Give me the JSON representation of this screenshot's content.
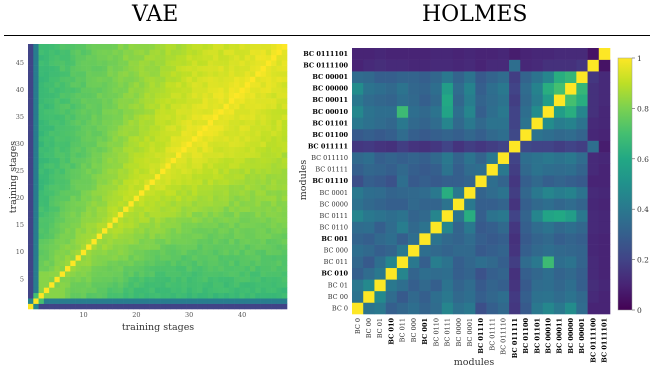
{
  "titles": {
    "left": "VAE",
    "right": "HOLMES"
  },
  "colors": {
    "viridis": [
      "#440154",
      "#482475",
      "#414487",
      "#355f8d",
      "#2a788e",
      "#21918c",
      "#22a884",
      "#44bf70",
      "#7ad151",
      "#bddf26",
      "#fde725"
    ]
  },
  "chart_data": [
    {
      "type": "heatmap",
      "title": "VAE",
      "xlabel": "training stages",
      "ylabel": "training stages",
      "n": 49,
      "xlim": [
        0,
        48
      ],
      "ylim": [
        0,
        48
      ],
      "x_ticks": [
        10,
        20,
        30,
        40
      ],
      "y_ticks": [
        5,
        10,
        15,
        20,
        25,
        30,
        35,
        40,
        45
      ],
      "zlim": [
        0,
        1
      ],
      "colormap": "viridis",
      "grid": false,
      "legend": "none"
    },
    {
      "type": "heatmap",
      "title": "HOLMES",
      "xlabel": "modules",
      "ylabel": "modules",
      "zlim": [
        0,
        1
      ],
      "colormap": "viridis",
      "grid": false,
      "colorbar": {
        "placement": "right",
        "ticks": [
          "0",
          "0.2",
          "0.4",
          "0.6",
          "0.8",
          "1"
        ]
      },
      "modules": [
        {
          "name": "BC 0",
          "bold": false
        },
        {
          "name": "BC 00",
          "bold": false
        },
        {
          "name": "BC 01",
          "bold": false
        },
        {
          "name": "BC 010",
          "bold": true
        },
        {
          "name": "BC 011",
          "bold": false
        },
        {
          "name": "BC 000",
          "bold": false
        },
        {
          "name": "BC 001",
          "bold": true
        },
        {
          "name": "BC 0110",
          "bold": false
        },
        {
          "name": "BC 0111",
          "bold": false
        },
        {
          "name": "BC 0000",
          "bold": false
        },
        {
          "name": "BC 0001",
          "bold": false
        },
        {
          "name": "BC 01110",
          "bold": true
        },
        {
          "name": "BC 01111",
          "bold": false
        },
        {
          "name": "BC 011110",
          "bold": false
        },
        {
          "name": "BC 011111",
          "bold": true
        },
        {
          "name": "BC 01100",
          "bold": true
        },
        {
          "name": "BC 01101",
          "bold": true
        },
        {
          "name": "BC 00010",
          "bold": true
        },
        {
          "name": "BC 00011",
          "bold": true
        },
        {
          "name": "BC 00000",
          "bold": true
        },
        {
          "name": "BC 00001",
          "bold": true
        },
        {
          "name": "BC 0111100",
          "bold": true
        },
        {
          "name": "BC 0111101",
          "bold": true
        }
      ],
      "values": [
        [
          1.0,
          0.38,
          0.4,
          0.3,
          0.33,
          0.36,
          0.32,
          0.35,
          0.45,
          0.37,
          0.4,
          0.24,
          0.3,
          0.34,
          0.16,
          0.28,
          0.4,
          0.46,
          0.4,
          0.48,
          0.35,
          0.1,
          0.1
        ],
        [
          0.38,
          1.0,
          0.47,
          0.35,
          0.28,
          0.34,
          0.3,
          0.36,
          0.4,
          0.34,
          0.36,
          0.3,
          0.33,
          0.36,
          0.17,
          0.3,
          0.37,
          0.38,
          0.35,
          0.38,
          0.34,
          0.12,
          0.1
        ],
        [
          0.4,
          0.47,
          1.0,
          0.4,
          0.36,
          0.3,
          0.34,
          0.3,
          0.38,
          0.32,
          0.35,
          0.28,
          0.32,
          0.3,
          0.15,
          0.28,
          0.35,
          0.36,
          0.33,
          0.36,
          0.3,
          0.13,
          0.11
        ],
        [
          0.3,
          0.35,
          0.4,
          1.0,
          0.45,
          0.32,
          0.36,
          0.35,
          0.36,
          0.3,
          0.32,
          0.25,
          0.3,
          0.32,
          0.14,
          0.3,
          0.33,
          0.36,
          0.32,
          0.34,
          0.3,
          0.12,
          0.1
        ],
        [
          0.33,
          0.28,
          0.36,
          0.45,
          1.0,
          0.4,
          0.3,
          0.42,
          0.38,
          0.3,
          0.33,
          0.36,
          0.34,
          0.3,
          0.18,
          0.35,
          0.4,
          0.68,
          0.36,
          0.38,
          0.32,
          0.12,
          0.1
        ],
        [
          0.36,
          0.34,
          0.3,
          0.32,
          0.4,
          1.0,
          0.36,
          0.34,
          0.32,
          0.34,
          0.34,
          0.28,
          0.3,
          0.32,
          0.15,
          0.3,
          0.34,
          0.36,
          0.34,
          0.33,
          0.32,
          0.11,
          0.1
        ],
        [
          0.32,
          0.3,
          0.34,
          0.36,
          0.3,
          0.36,
          1.0,
          0.38,
          0.34,
          0.32,
          0.35,
          0.3,
          0.28,
          0.3,
          0.14,
          0.28,
          0.32,
          0.34,
          0.3,
          0.32,
          0.3,
          0.11,
          0.1
        ],
        [
          0.35,
          0.36,
          0.3,
          0.35,
          0.42,
          0.34,
          0.38,
          1.0,
          0.45,
          0.32,
          0.4,
          0.28,
          0.3,
          0.34,
          0.16,
          0.3,
          0.35,
          0.38,
          0.34,
          0.36,
          0.33,
          0.12,
          0.11
        ],
        [
          0.45,
          0.4,
          0.38,
          0.36,
          0.38,
          0.32,
          0.34,
          0.45,
          1.0,
          0.38,
          0.62,
          0.3,
          0.38,
          0.4,
          0.2,
          0.32,
          0.45,
          0.58,
          0.6,
          0.55,
          0.4,
          0.12,
          0.11
        ],
        [
          0.37,
          0.34,
          0.32,
          0.3,
          0.3,
          0.34,
          0.32,
          0.32,
          0.38,
          1.0,
          0.4,
          0.3,
          0.3,
          0.32,
          0.15,
          0.3,
          0.34,
          0.36,
          0.33,
          0.35,
          0.32,
          0.11,
          0.1
        ],
        [
          0.4,
          0.36,
          0.35,
          0.32,
          0.33,
          0.34,
          0.35,
          0.4,
          0.62,
          0.4,
          1.0,
          0.32,
          0.35,
          0.38,
          0.18,
          0.33,
          0.4,
          0.45,
          0.42,
          0.44,
          0.38,
          0.12,
          0.11
        ],
        [
          0.24,
          0.3,
          0.28,
          0.25,
          0.36,
          0.28,
          0.3,
          0.28,
          0.3,
          0.3,
          0.32,
          1.0,
          0.36,
          0.32,
          0.16,
          0.3,
          0.34,
          0.3,
          0.32,
          0.3,
          0.28,
          0.1,
          0.1
        ],
        [
          0.3,
          0.33,
          0.32,
          0.3,
          0.34,
          0.3,
          0.28,
          0.3,
          0.38,
          0.3,
          0.35,
          0.36,
          1.0,
          0.4,
          0.18,
          0.34,
          0.38,
          0.36,
          0.35,
          0.36,
          0.32,
          0.12,
          0.1
        ],
        [
          0.34,
          0.36,
          0.3,
          0.32,
          0.3,
          0.32,
          0.3,
          0.34,
          0.4,
          0.32,
          0.38,
          0.32,
          0.4,
          1.0,
          0.2,
          0.36,
          0.38,
          0.4,
          0.38,
          0.4,
          0.35,
          0.12,
          0.11
        ],
        [
          0.16,
          0.17,
          0.15,
          0.14,
          0.18,
          0.15,
          0.14,
          0.16,
          0.2,
          0.15,
          0.18,
          0.16,
          0.18,
          0.2,
          1.0,
          0.22,
          0.2,
          0.2,
          0.18,
          0.2,
          0.18,
          0.36,
          0.08
        ],
        [
          0.28,
          0.3,
          0.28,
          0.3,
          0.35,
          0.3,
          0.28,
          0.3,
          0.32,
          0.3,
          0.33,
          0.3,
          0.34,
          0.36,
          0.22,
          1.0,
          0.38,
          0.36,
          0.34,
          0.35,
          0.32,
          0.11,
          0.1
        ],
        [
          0.4,
          0.37,
          0.35,
          0.33,
          0.4,
          0.34,
          0.32,
          0.35,
          0.45,
          0.34,
          0.4,
          0.34,
          0.38,
          0.38,
          0.2,
          0.38,
          1.0,
          0.48,
          0.42,
          0.44,
          0.38,
          0.12,
          0.11
        ],
        [
          0.46,
          0.38,
          0.36,
          0.36,
          0.68,
          0.36,
          0.34,
          0.38,
          0.58,
          0.36,
          0.45,
          0.3,
          0.36,
          0.4,
          0.2,
          0.36,
          0.48,
          1.0,
          0.55,
          0.62,
          0.45,
          0.14,
          0.11
        ],
        [
          0.4,
          0.35,
          0.33,
          0.32,
          0.36,
          0.34,
          0.3,
          0.34,
          0.6,
          0.33,
          0.42,
          0.32,
          0.35,
          0.38,
          0.18,
          0.34,
          0.42,
          0.55,
          1.0,
          0.7,
          0.62,
          0.14,
          0.12
        ],
        [
          0.48,
          0.38,
          0.36,
          0.34,
          0.38,
          0.33,
          0.32,
          0.36,
          0.55,
          0.35,
          0.44,
          0.3,
          0.36,
          0.4,
          0.2,
          0.35,
          0.44,
          0.62,
          0.7,
          1.0,
          0.66,
          0.14,
          0.12
        ],
        [
          0.35,
          0.34,
          0.3,
          0.3,
          0.32,
          0.32,
          0.3,
          0.33,
          0.4,
          0.32,
          0.38,
          0.28,
          0.32,
          0.35,
          0.18,
          0.32,
          0.38,
          0.45,
          0.62,
          0.66,
          1.0,
          0.16,
          0.12
        ],
        [
          0.1,
          0.12,
          0.13,
          0.12,
          0.12,
          0.11,
          0.11,
          0.12,
          0.12,
          0.11,
          0.12,
          0.1,
          0.12,
          0.12,
          0.36,
          0.11,
          0.12,
          0.14,
          0.14,
          0.14,
          0.16,
          1.0,
          0.05
        ],
        [
          0.1,
          0.1,
          0.11,
          0.1,
          0.1,
          0.1,
          0.1,
          0.11,
          0.11,
          0.1,
          0.11,
          0.1,
          0.1,
          0.11,
          0.08,
          0.1,
          0.11,
          0.11,
          0.12,
          0.12,
          0.12,
          0.05,
          1.0
        ]
      ]
    }
  ]
}
